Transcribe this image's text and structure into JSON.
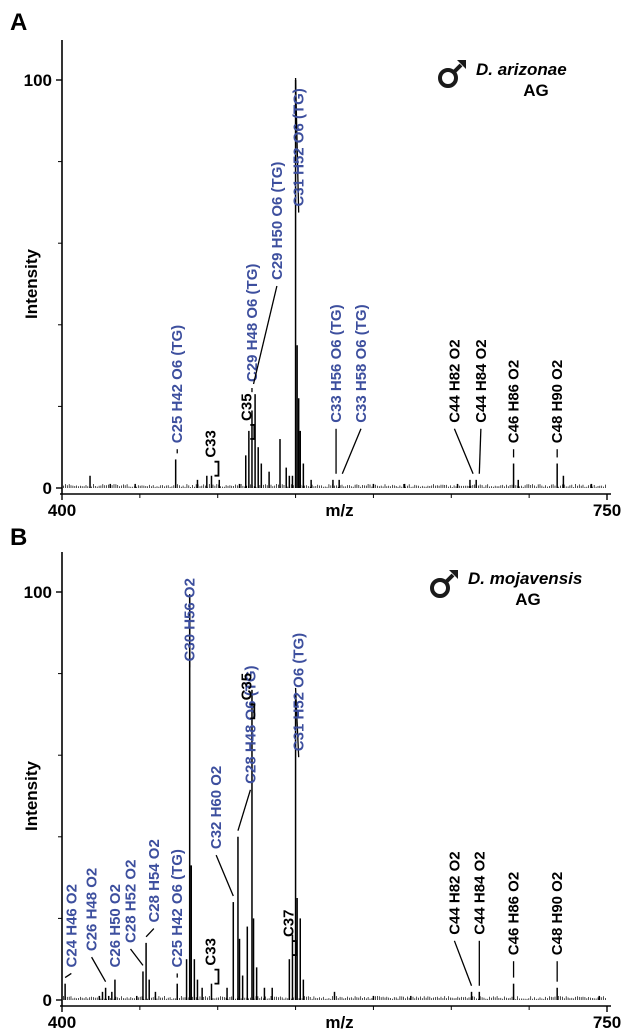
{
  "colors": {
    "lipid": "#000000",
    "tg": "#3d4f9e",
    "axis": "#000000"
  },
  "chart_data": [
    {
      "panel_label": "A",
      "type": "line",
      "title_species": "D. arizonae",
      "title_tissue": "AG",
      "symbol": "male",
      "xlabel": "m/z",
      "ylabel": "Intensity",
      "xlim": [
        400,
        750
      ],
      "ylim": [
        0,
        100
      ],
      "x_tick_labels": [
        "400",
        "750"
      ],
      "y_tick_labels": [
        "0",
        "100"
      ],
      "grid": false,
      "peaks": [
        {
          "mz": 418,
          "i": 3
        },
        {
          "mz": 431,
          "i": 1
        },
        {
          "mz": 447,
          "i": 1
        },
        {
          "mz": 473,
          "i": 7
        },
        {
          "mz": 487,
          "i": 2
        },
        {
          "mz": 493,
          "i": 3
        },
        {
          "mz": 496,
          "i": 3
        },
        {
          "mz": 501,
          "i": 2
        },
        {
          "mz": 514,
          "i": 1
        },
        {
          "mz": 518,
          "i": 8
        },
        {
          "mz": 520,
          "i": 14
        },
        {
          "mz": 522,
          "i": 19
        },
        {
          "mz": 524,
          "i": 23
        },
        {
          "mz": 526,
          "i": 10
        },
        {
          "mz": 528,
          "i": 6
        },
        {
          "mz": 533,
          "i": 4
        },
        {
          "mz": 540,
          "i": 12
        },
        {
          "mz": 544,
          "i": 5
        },
        {
          "mz": 546,
          "i": 3
        },
        {
          "mz": 548,
          "i": 3
        },
        {
          "mz": 550,
          "i": 100
        },
        {
          "mz": 551,
          "i": 35
        },
        {
          "mz": 552,
          "i": 22
        },
        {
          "mz": 553,
          "i": 14
        },
        {
          "mz": 555,
          "i": 6
        },
        {
          "mz": 560,
          "i": 2
        },
        {
          "mz": 574,
          "i": 2
        },
        {
          "mz": 578,
          "i": 2
        },
        {
          "mz": 600,
          "i": 1
        },
        {
          "mz": 620,
          "i": 1
        },
        {
          "mz": 654,
          "i": 1
        },
        {
          "mz": 662,
          "i": 2
        },
        {
          "mz": 666,
          "i": 2
        },
        {
          "mz": 690,
          "i": 6
        },
        {
          "mz": 693,
          "i": 2
        },
        {
          "mz": 718,
          "i": 6
        },
        {
          "mz": 722,
          "i": 3
        },
        {
          "mz": 740,
          "i": 1
        }
      ],
      "annotations": [
        {
          "text": "C25 H42 O6 (TG)",
          "kind": "tg",
          "anchor_mz": 474,
          "anchor_i": 8,
          "label_mz": 474,
          "label_i": 10
        },
        {
          "text": "C33",
          "kind": "lipid",
          "anchor_mz": 496,
          "anchor_i": 4,
          "label_mz": 496,
          "label_i": 5,
          "bracket": true
        },
        {
          "text": "C35",
          "kind": "lipid",
          "anchor_mz": 519,
          "anchor_i": 13,
          "label_mz": 519,
          "label_i": 14,
          "bracket": true
        },
        {
          "text": "C29 H48 O6 (TG)",
          "kind": "tg",
          "anchor_mz": 522,
          "anchor_i": 23,
          "label_mz": 522,
          "label_i": 25
        },
        {
          "text": "C29 H50 O6 (TG)",
          "kind": "tg",
          "anchor_mz": 523,
          "anchor_i": 25,
          "label_mz": 538,
          "label_i": 50
        },
        {
          "text": "C31 H52 O6 (TG)",
          "kind": "tg",
          "anchor_mz": 550,
          "anchor_i": 100,
          "label_mz": 552,
          "label_i": 68
        },
        {
          "text": "C33 H56 O6 (TG)",
          "kind": "tg",
          "anchor_mz": 576,
          "anchor_i": 3,
          "label_mz": 576,
          "label_i": 15
        },
        {
          "text": "C33 H58 O6 (TG)",
          "kind": "tg",
          "anchor_mz": 580,
          "anchor_i": 3,
          "label_mz": 592,
          "label_i": 15
        },
        {
          "text": "C44 H82 O2",
          "kind": "lipid",
          "anchor_mz": 664,
          "anchor_i": 3,
          "label_mz": 652,
          "label_i": 15
        },
        {
          "text": "C44 H84 O2",
          "kind": "lipid",
          "anchor_mz": 668,
          "anchor_i": 3,
          "label_mz": 669,
          "label_i": 15
        },
        {
          "text": "C46 H86 O2",
          "kind": "lipid",
          "anchor_mz": 690,
          "anchor_i": 7,
          "label_mz": 690,
          "label_i": 10
        },
        {
          "text": "C48 H90 O2",
          "kind": "lipid",
          "anchor_mz": 718,
          "anchor_i": 7,
          "label_mz": 718,
          "label_i": 10
        }
      ]
    },
    {
      "panel_label": "B",
      "type": "line",
      "title_species": "D. mojavensis",
      "title_tissue": "AG",
      "symbol": "male",
      "xlabel": "m/z",
      "ylabel": "Intensity",
      "xlim": [
        400,
        750
      ],
      "ylim": [
        0,
        100
      ],
      "x_tick_labels": [
        "400",
        "750"
      ],
      "y_tick_labels": [
        "0",
        "100"
      ],
      "grid": false,
      "peaks": [
        {
          "mz": 402,
          "i": 4
        },
        {
          "mz": 424,
          "i": 1
        },
        {
          "mz": 426,
          "i": 2
        },
        {
          "mz": 428,
          "i": 3
        },
        {
          "mz": 430,
          "i": 1
        },
        {
          "mz": 432,
          "i": 2
        },
        {
          "mz": 434,
          "i": 5
        },
        {
          "mz": 448,
          "i": 1
        },
        {
          "mz": 452,
          "i": 7
        },
        {
          "mz": 454,
          "i": 14
        },
        {
          "mz": 456,
          "i": 5
        },
        {
          "mz": 460,
          "i": 2
        },
        {
          "mz": 474,
          "i": 4
        },
        {
          "mz": 480,
          "i": 10
        },
        {
          "mz": 482,
          "i": 99
        },
        {
          "mz": 483,
          "i": 33
        },
        {
          "mz": 485,
          "i": 10
        },
        {
          "mz": 487,
          "i": 5
        },
        {
          "mz": 490,
          "i": 3
        },
        {
          "mz": 496,
          "i": 4
        },
        {
          "mz": 506,
          "i": 3
        },
        {
          "mz": 510,
          "i": 24
        },
        {
          "mz": 513,
          "i": 40
        },
        {
          "mz": 514,
          "i": 15
        },
        {
          "mz": 516,
          "i": 6
        },
        {
          "mz": 519,
          "i": 18
        },
        {
          "mz": 522,
          "i": 76
        },
        {
          "mz": 523,
          "i": 20
        },
        {
          "mz": 525,
          "i": 8
        },
        {
          "mz": 530,
          "i": 3
        },
        {
          "mz": 535,
          "i": 3
        },
        {
          "mz": 546,
          "i": 10
        },
        {
          "mz": 548,
          "i": 16
        },
        {
          "mz": 550,
          "i": 75
        },
        {
          "mz": 551,
          "i": 25
        },
        {
          "mz": 553,
          "i": 20
        },
        {
          "mz": 555,
          "i": 5
        },
        {
          "mz": 575,
          "i": 2
        },
        {
          "mz": 600,
          "i": 1
        },
        {
          "mz": 624,
          "i": 1
        },
        {
          "mz": 663,
          "i": 2
        },
        {
          "mz": 668,
          "i": 2
        },
        {
          "mz": 690,
          "i": 4
        },
        {
          "mz": 718,
          "i": 3
        },
        {
          "mz": 745,
          "i": 1
        }
      ],
      "annotations": [
        {
          "text": "C24 H46 O2",
          "kind": "tg",
          "anchor_mz": 402,
          "anchor_i": 5,
          "label_mz": 406,
          "label_i": 7
        },
        {
          "text": "C26 H48 O2",
          "kind": "tg",
          "anchor_mz": 428,
          "anchor_i": 4,
          "label_mz": 419,
          "label_i": 11
        },
        {
          "text": "C26 H50 O2",
          "kind": "tg",
          "anchor_mz": 434,
          "anchor_i": 6,
          "label_mz": 434,
          "label_i": 7
        },
        {
          "text": "C28 H52 O2",
          "kind": "tg",
          "anchor_mz": 452,
          "anchor_i": 8,
          "label_mz": 444,
          "label_i": 13
        },
        {
          "text": "C28 H54 O2",
          "kind": "tg",
          "anchor_mz": 454,
          "anchor_i": 15,
          "label_mz": 459,
          "label_i": 18
        },
        {
          "text": "C25 H42 O6 (TG)",
          "kind": "tg",
          "anchor_mz": 474,
          "anchor_i": 5,
          "label_mz": 474,
          "label_i": 7
        },
        {
          "text": "C30 H56 O2",
          "kind": "tg",
          "anchor_mz": 482,
          "anchor_i": 99,
          "label_mz": 482,
          "label_i": 82
        },
        {
          "text": "C33",
          "kind": "lipid",
          "anchor_mz": 496,
          "anchor_i": 5,
          "label_mz": 496,
          "label_i": 7,
          "bracket": true
        },
        {
          "text": "C32 H60 O2",
          "kind": "tg",
          "anchor_mz": 510,
          "anchor_i": 25,
          "label_mz": 499,
          "label_i": 36
        },
        {
          "text": "C28 H48 O6 (TG)",
          "kind": "tg",
          "anchor_mz": 513,
          "anchor_i": 41,
          "label_mz": 521,
          "label_i": 52
        },
        {
          "text": "C35",
          "kind": "lipid",
          "anchor_mz": 519,
          "anchor_i": 70,
          "label_mz": 519,
          "label_i": 73,
          "bracket": true
        },
        {
          "text": "C37",
          "kind": "lipid",
          "anchor_mz": 546,
          "anchor_i": 12,
          "label_mz": 546,
          "label_i": 13,
          "bracket": true
        },
        {
          "text": "C31 H52 O6 (TG)",
          "kind": "tg",
          "anchor_mz": 550,
          "anchor_i": 76,
          "label_mz": 552,
          "label_i": 60
        },
        {
          "text": "C44 H82 O2",
          "kind": "lipid",
          "anchor_mz": 663,
          "anchor_i": 3,
          "label_mz": 652,
          "label_i": 15
        },
        {
          "text": "C44 H84 O2",
          "kind": "lipid",
          "anchor_mz": 668,
          "anchor_i": 3,
          "label_mz": 668,
          "label_i": 15
        },
        {
          "text": "C46 H86 O2",
          "kind": "lipid",
          "anchor_mz": 690,
          "anchor_i": 5,
          "label_mz": 690,
          "label_i": 10
        },
        {
          "text": "C48 H90 O2",
          "kind": "lipid",
          "anchor_mz": 718,
          "anchor_i": 4,
          "label_mz": 718,
          "label_i": 10
        }
      ]
    }
  ]
}
